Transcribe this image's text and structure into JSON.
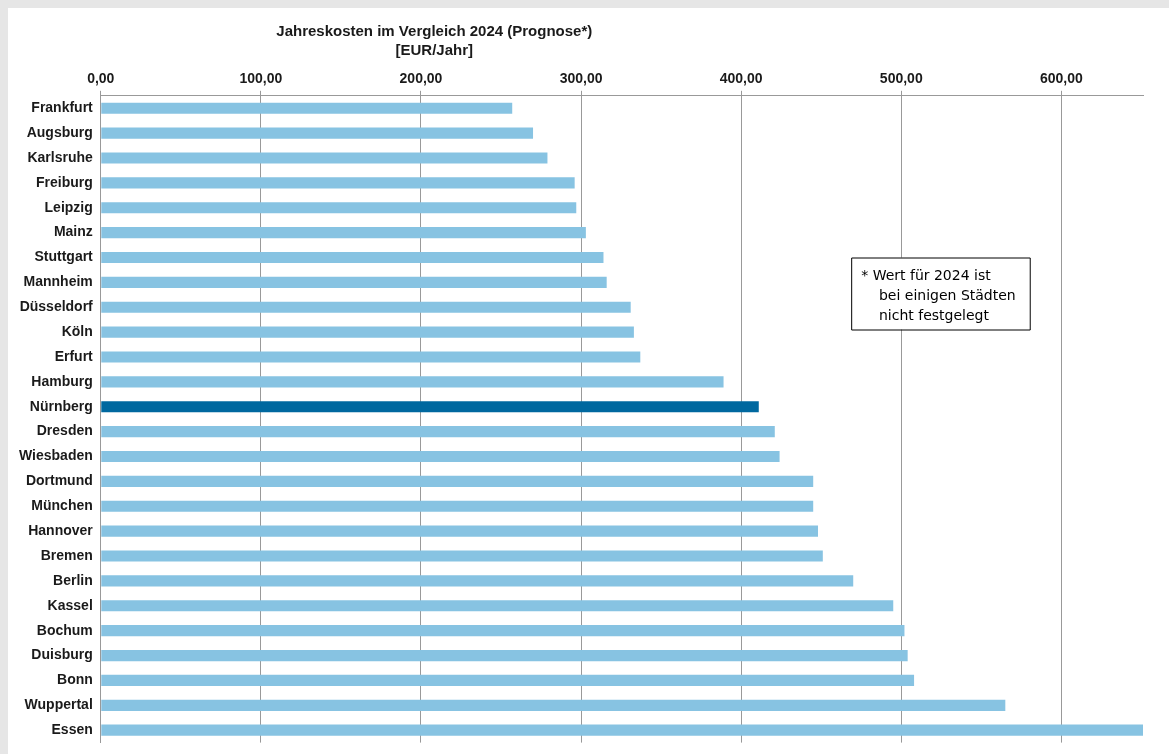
{
  "chart_data": {
    "type": "bar",
    "orientation": "horizontal",
    "title": "Jahreskosten im Vergleich 2024 (Prognose*)",
    "subtitle": "[EUR/Jahr]",
    "categories": [
      "Frankfurt",
      "Augsburg",
      "Karlsruhe",
      "Freiburg",
      "Leipzig",
      "Mainz",
      "Stuttgart",
      "Mannheim",
      "Düsseldorf",
      "Köln",
      "Erfurt",
      "Hamburg",
      "Nürnberg",
      "Dresden",
      "Wiesbaden",
      "Dortmund",
      "München",
      "Hannover",
      "Bremen",
      "Berlin",
      "Kassel",
      "Bochum",
      "Duisburg",
      "Bonn",
      "Wuppertal",
      "Essen"
    ],
    "values": [
      257,
      270,
      279,
      296,
      297,
      303,
      314,
      316,
      331,
      333,
      337,
      389,
      411,
      421,
      424,
      445,
      445,
      448,
      451,
      470,
      495,
      502,
      504,
      508,
      565,
      651
    ],
    "colors": [
      "#87c3e2",
      "#87c3e2",
      "#87c3e2",
      "#87c3e2",
      "#87c3e2",
      "#87c3e2",
      "#87c3e2",
      "#87c3e2",
      "#87c3e2",
      "#87c3e2",
      "#87c3e2",
      "#87c3e2",
      "#00689f",
      "#87c3e2",
      "#87c3e2",
      "#87c3e2",
      "#87c3e2",
      "#87c3e2",
      "#87c3e2",
      "#87c3e2",
      "#87c3e2",
      "#87c3e2",
      "#87c3e2",
      "#87c3e2",
      "#87c3e2",
      "#87c3e2"
    ],
    "xlim": [
      0,
      651
    ],
    "xticks": [
      {
        "value": 0,
        "label": "0,00"
      },
      {
        "value": 100,
        "label": "100,00"
      },
      {
        "value": 200,
        "label": "200,00"
      },
      {
        "value": 300,
        "label": "300,00"
      },
      {
        "value": 400,
        "label": "400,00"
      },
      {
        "value": 500,
        "label": "500,00"
      },
      {
        "value": 600,
        "label": "600,00"
      }
    ],
    "grid": "x",
    "annotations": [
      "* Wert für 2024 ist\n    bei einigen Städten\n    nicht festgelegt"
    ]
  }
}
